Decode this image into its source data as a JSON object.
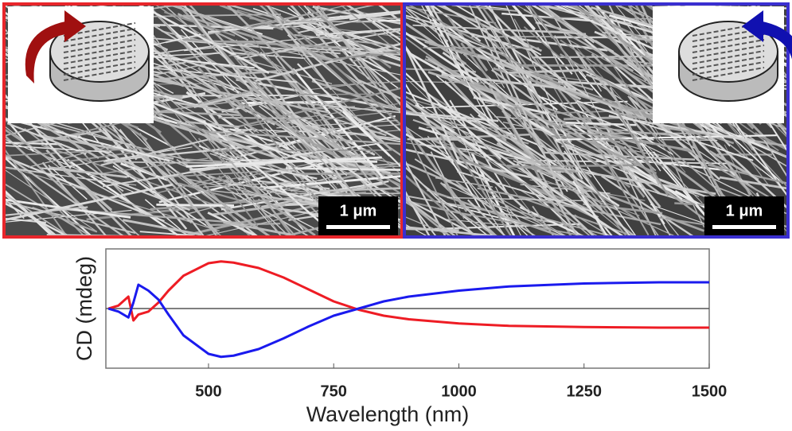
{
  "images": [
    {
      "scale_bar": "1 μm",
      "border_color": "#e8262b",
      "arrow_color": "#a01010"
    },
    {
      "scale_bar": "1 μm",
      "border_color": "#3a2fd0",
      "arrow_color": "#1010b0"
    }
  ],
  "chart_data": {
    "type": "line",
    "xlabel": "Wavelength (nm)",
    "ylabel": "CD (mdeg)",
    "xlim": [
      295,
      1500
    ],
    "xticks": [
      500,
      750,
      1000,
      1250,
      1500
    ],
    "ylim": [
      -1,
      1
    ],
    "hline": 0,
    "x": [
      300,
      320,
      340,
      350,
      360,
      380,
      400,
      420,
      450,
      500,
      525,
      550,
      600,
      650,
      700,
      750,
      800,
      850,
      900,
      1000,
      1100,
      1250,
      1400,
      1500
    ],
    "series": [
      {
        "color": "#ee1c24",
        "values": [
          0,
          0.05,
          0.2,
          -0.2,
          -0.1,
          -0.05,
          0.1,
          0.3,
          0.55,
          0.76,
          0.79,
          0.77,
          0.68,
          0.52,
          0.32,
          0.12,
          -0.02,
          -0.12,
          -0.18,
          -0.25,
          -0.29,
          -0.31,
          -0.32,
          -0.32
        ]
      },
      {
        "color": "#1a1aee",
        "values": [
          0,
          -0.05,
          -0.15,
          0.1,
          0.4,
          0.3,
          0.15,
          -0.1,
          -0.45,
          -0.76,
          -0.81,
          -0.79,
          -0.68,
          -0.5,
          -0.3,
          -0.12,
          0,
          0.12,
          0.2,
          0.3,
          0.37,
          0.42,
          0.44,
          0.44
        ]
      }
    ]
  }
}
